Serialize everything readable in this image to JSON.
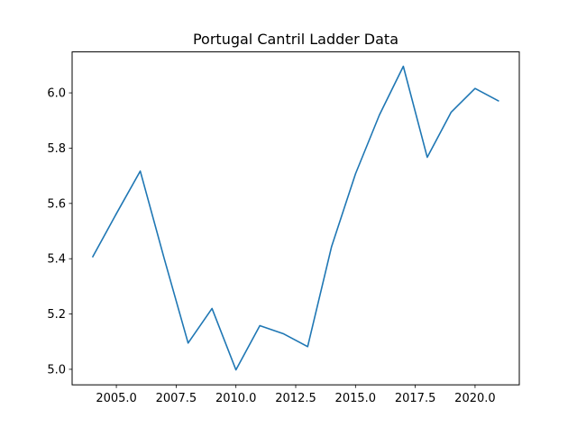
{
  "chart_data": {
    "type": "line",
    "title": "Portugal Cantril Ladder Data",
    "xlabel": "",
    "ylabel": "",
    "xlim": [
      2003.15,
      2021.85
    ],
    "ylim": [
      4.9438,
      6.1482
    ],
    "xticks": [
      2005.0,
      2007.5,
      2010.0,
      2012.5,
      2015.0,
      2017.5,
      2020.0
    ],
    "xtick_labels": [
      "2005.0",
      "2007.5",
      "2010.0",
      "2012.5",
      "2015.0",
      "2017.5",
      "2020.0"
    ],
    "yticks": [
      5.0,
      5.2,
      5.4,
      5.6,
      5.8,
      6.0
    ],
    "ytick_labels": [
      "5.0",
      "5.2",
      "5.4",
      "5.6",
      "5.8",
      "6.0"
    ],
    "grid": false,
    "series": [
      {
        "color": "#1f77b4",
        "x": [
          2004,
          2005,
          2006,
          2007,
          2008,
          2009,
          2010,
          2011,
          2012,
          2013,
          2014,
          2015,
          2016,
          2017,
          2018,
          2019,
          2020,
          2021
        ],
        "y": [
          5.405,
          5.563,
          5.717,
          5.401,
          5.095,
          5.22,
          4.998,
          5.158,
          5.128,
          5.082,
          5.444,
          5.707,
          5.92,
          6.096,
          5.767,
          5.93,
          6.016,
          5.97
        ]
      }
    ]
  }
}
